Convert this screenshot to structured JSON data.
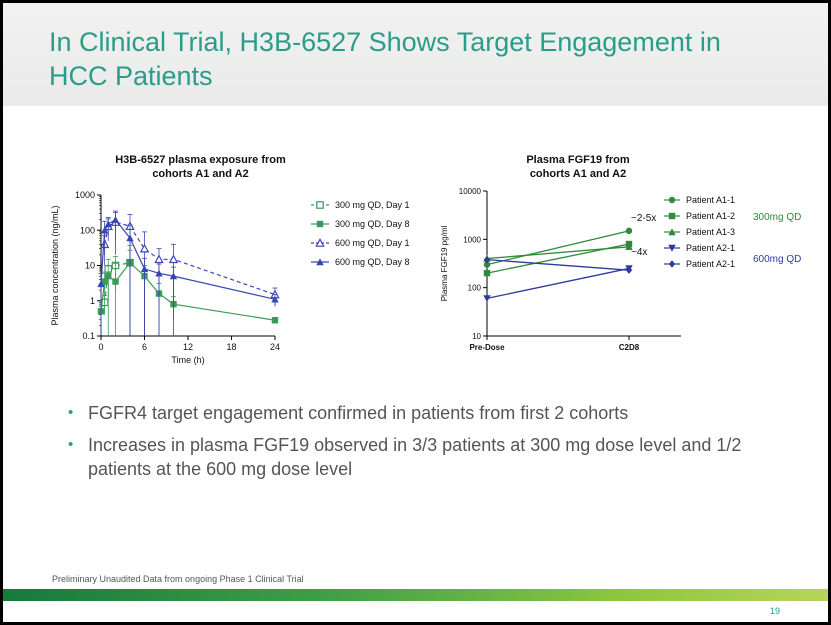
{
  "slide": {
    "title": "In Clinical Trial, H3B-6527 Shows Target Engagement in HCC Patients",
    "bullets": [
      "FGFR4 target engagement confirmed in patients from first 2 cohorts",
      "Increases in plasma FGF19 observed in 3/3 patients at 300 mg dose level and 1/2 patients at the 600 mg dose level"
    ],
    "footnote": "Preliminary Unaudited Data from ongoing Phase 1 Clinical Trial",
    "page_number": "19"
  },
  "chart_data": [
    {
      "type": "line",
      "title": "H3B-6527 plasma exposure from cohorts A1 and A2",
      "title_lines": [
        "H3B-6527 plasma exposure from",
        "cohorts A1 and A2"
      ],
      "xlabel": "Time (h)",
      "ylabel": "Plasma concentration (ng/mL)",
      "xlim": [
        0,
        24
      ],
      "ylim": [
        0.1,
        1000
      ],
      "yscale": "log",
      "xticks": [
        0,
        6,
        12,
        18,
        24
      ],
      "yticks": [
        0.1,
        1,
        10,
        100,
        1000
      ],
      "ytick_labels": [
        "0.1",
        "1",
        "10",
        "100",
        "1000"
      ],
      "legend_position": "right",
      "series": [
        {
          "name": "300 mg QD, Day 1",
          "color": "#3a9a5a",
          "marker": "square-open",
          "dash": true,
          "x": [
            0.5,
            1,
            2,
            4
          ],
          "y": [
            0.9,
            8,
            10,
            12
          ],
          "err": [
            0.5,
            7,
            8,
            25
          ]
        },
        {
          "name": "300 mg QD, Day 8",
          "color": "#3a9a5a",
          "marker": "square",
          "dash": false,
          "x": [
            0,
            0.5,
            1,
            2,
            4,
            6,
            8,
            10,
            24
          ],
          "y": [
            0.5,
            3.5,
            5,
            3.5,
            12,
            5,
            1.6,
            0.8,
            0.28
          ],
          "err": [
            0.2,
            3,
            5,
            8,
            15,
            5,
            1.5,
            0.5,
            0.05
          ]
        },
        {
          "name": "600 mg QD, Day 1",
          "color": "#3a46b3",
          "marker": "triangle-open",
          "dash": true,
          "x": [
            0.5,
            1,
            2,
            4,
            6,
            8,
            10,
            24
          ],
          "y": [
            40,
            130,
            170,
            130,
            30,
            15,
            15,
            1.5
          ],
          "err": [
            30,
            80,
            150,
            150,
            60,
            15,
            25,
            0.8
          ]
        },
        {
          "name": "600 mg QD, Day 8",
          "color": "#3a46b3",
          "marker": "triangle",
          "dash": false,
          "x": [
            0,
            0.5,
            1,
            2,
            4,
            6,
            8,
            10,
            24
          ],
          "y": [
            3,
            100,
            150,
            200,
            60,
            8,
            6,
            5,
            1.1
          ],
          "err": [
            3,
            80,
            80,
            150,
            80,
            8,
            5,
            4,
            0.4
          ]
        }
      ]
    },
    {
      "type": "line",
      "title": "Plasma FGF19 from cohorts A1 and A2",
      "title_lines": [
        "Plasma FGF19 from",
        "cohorts A1 and A2"
      ],
      "xlabel": "",
      "ylabel": "Plasma FGF19 pg/ml",
      "categories": [
        "Pre-Dose",
        "C2D8"
      ],
      "ylim": [
        10,
        10000
      ],
      "yscale": "log",
      "yticks": [
        10,
        100,
        1000,
        10000
      ],
      "ytick_labels": [
        "10",
        "100",
        "1000",
        "10000"
      ],
      "legend_position": "right",
      "annotations": [
        "~2-5x",
        "~4x"
      ],
      "group_labels": [
        {
          "text": "300mg QD",
          "color": "#2e8b3a"
        },
        {
          "text": "600mg QD",
          "color": "#2f3a9e"
        }
      ],
      "series": [
        {
          "name": "Patient A1-1",
          "color": "#2e8b3a",
          "marker": "circle",
          "values": [
            300,
            1500
          ]
        },
        {
          "name": "Patient A1-2",
          "color": "#2e8b3a",
          "marker": "square",
          "values": [
            200,
            800
          ]
        },
        {
          "name": "Patient A1-3",
          "color": "#2e8b3a",
          "marker": "triangle",
          "values": [
            400,
            700
          ]
        },
        {
          "name": "Patient A2-1",
          "color": "#2f3a9e",
          "marker": "triangle-down",
          "values": [
            60,
            250
          ]
        },
        {
          "name": "Patient A2-1",
          "color": "#2f3a9e",
          "marker": "diamond",
          "values": [
            380,
            230
          ]
        }
      ]
    }
  ]
}
